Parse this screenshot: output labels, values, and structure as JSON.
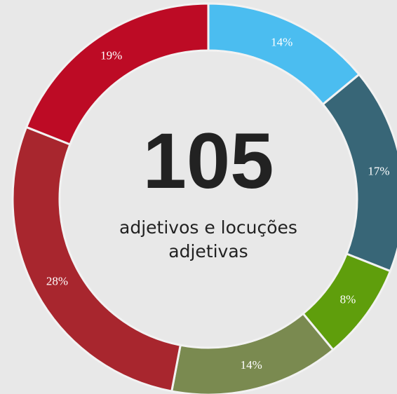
{
  "chart_data": {
    "type": "donut",
    "center_value": "105",
    "center_label": "adjetivos e locuções adjetivas",
    "categories": [
      null,
      null,
      null,
      null,
      null,
      null
    ],
    "values": [
      14,
      17,
      8,
      14,
      28,
      19
    ],
    "value_labels": [
      "14%",
      "17%",
      "8%",
      "14%",
      "28%",
      "19%"
    ],
    "colors": [
      "#4bbdf0",
      "#386677",
      "#5f9e0c",
      "#7a8a50",
      "#a8262e",
      "#bd0b25"
    ]
  }
}
